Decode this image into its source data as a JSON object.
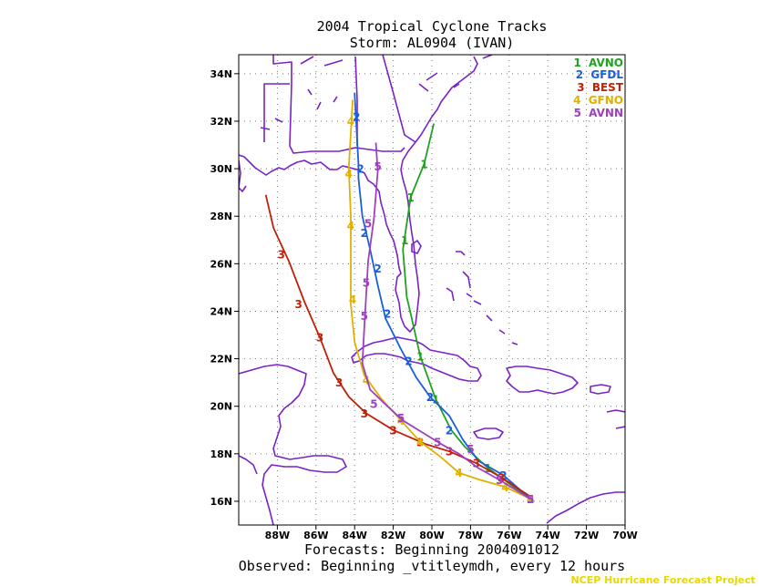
{
  "title_line1": "2004 Tropical Cyclone Tracks",
  "title_line2": "Storm: AL0904 (IVAN)",
  "footer_line1": "Forecasts: Beginning 2004091012",
  "footer_line2": "Observed: Beginning _vtitleymdh, every 12 hours",
  "credit": "NCEP Hurricane Forecast Project",
  "colors": {
    "AVNO": "#22a022",
    "GFDL": "#1a5fd8",
    "BEST": "#c0200a",
    "GFNO": "#e0b000",
    "AVNN": "#a040c0",
    "map": "#7a22c8"
  },
  "chart_data": {
    "type": "line",
    "x_axis": {
      "min": -90,
      "max": -70,
      "ticks": [
        -88,
        -86,
        -84,
        -82,
        -80,
        -78,
        -76,
        -74,
        -72,
        -70
      ],
      "tick_labels": [
        "88W",
        "86W",
        "84W",
        "82W",
        "80W",
        "78W",
        "76W",
        "74W",
        "72W",
        "70W"
      ]
    },
    "y_axis": {
      "min": 15,
      "max": 34.8,
      "ticks": [
        16,
        18,
        20,
        22,
        24,
        26,
        28,
        30,
        32,
        34
      ],
      "tick_labels": [
        "16N",
        "18N",
        "20N",
        "22N",
        "24N",
        "26N",
        "28N",
        "30N",
        "32N",
        "34N"
      ]
    },
    "grid": true,
    "legend_position": "top-right",
    "series": [
      {
        "name": "AVNO",
        "marker": "1",
        "color": "#22a022",
        "points": [
          [
            -74.9,
            16.1
          ],
          [
            -77.1,
            17.4
          ],
          [
            -78.3,
            18.3
          ],
          [
            -79.0,
            19.0
          ],
          [
            -79.8,
            20.3
          ],
          [
            -80.6,
            22.1
          ],
          [
            -81.1,
            23.9
          ],
          [
            -81.3,
            24.6
          ],
          [
            -81.5,
            26.6
          ],
          [
            -81.1,
            28.8
          ],
          [
            -80.4,
            30.2
          ],
          [
            -79.9,
            31.9
          ]
        ],
        "marker_points": [
          [
            -74.9,
            16.1
          ],
          [
            -77.1,
            17.4
          ],
          [
            -79.8,
            20.3
          ],
          [
            -80.6,
            22.1
          ],
          [
            -81.4,
            27.0
          ],
          [
            -81.1,
            28.8
          ],
          [
            -80.4,
            30.2
          ]
        ]
      },
      {
        "name": "GFDL",
        "marker": "2",
        "color": "#1a5fd8",
        "points": [
          [
            -74.9,
            16.1
          ],
          [
            -76.3,
            17.1
          ],
          [
            -77.6,
            17.7
          ],
          [
            -78.4,
            18.6
          ],
          [
            -79.1,
            19.6
          ],
          [
            -80.1,
            20.4
          ],
          [
            -80.8,
            21.2
          ],
          [
            -81.6,
            22.4
          ],
          [
            -82.4,
            23.7
          ],
          [
            -82.8,
            25.1
          ],
          [
            -83.2,
            26.6
          ],
          [
            -83.6,
            28.0
          ],
          [
            -83.8,
            29.6
          ],
          [
            -83.8,
            30.2
          ],
          [
            -83.9,
            31.7
          ],
          [
            -84.0,
            33.2
          ]
        ],
        "marker_points": [
          [
            -74.9,
            16.1
          ],
          [
            -76.3,
            17.1
          ],
          [
            -79.1,
            19.0
          ],
          [
            -80.1,
            20.4
          ],
          [
            -81.2,
            21.9
          ],
          [
            -82.3,
            23.9
          ],
          [
            -82.8,
            25.8
          ],
          [
            -83.5,
            27.3
          ],
          [
            -83.7,
            30.0
          ],
          [
            -83.9,
            32.2
          ]
        ]
      },
      {
        "name": "BEST",
        "marker": "3",
        "color": "#c0200a",
        "points": [
          [
            -74.9,
            16.2
          ],
          [
            -76.4,
            17.0
          ],
          [
            -77.7,
            17.6
          ],
          [
            -79.1,
            18.1
          ],
          [
            -80.3,
            18.4
          ],
          [
            -82.0,
            19.0
          ],
          [
            -83.4,
            19.7
          ],
          [
            -84.3,
            20.4
          ],
          [
            -85.1,
            21.4
          ],
          [
            -85.8,
            22.9
          ],
          [
            -86.6,
            24.4
          ],
          [
            -87.4,
            26.1
          ],
          [
            -88.2,
            27.5
          ],
          [
            -88.6,
            28.9
          ]
        ],
        "marker_points": [
          [
            -76.4,
            17.0
          ],
          [
            -77.7,
            17.6
          ],
          [
            -79.1,
            18.1
          ],
          [
            -80.6,
            18.5
          ],
          [
            -82.0,
            19.0
          ],
          [
            -83.5,
            19.7
          ],
          [
            -84.8,
            21.0
          ],
          [
            -85.8,
            22.9
          ],
          [
            -86.9,
            24.3
          ],
          [
            -87.8,
            26.4
          ]
        ]
      },
      {
        "name": "GFNO",
        "marker": "4",
        "color": "#e0b000",
        "points": [
          [
            -74.9,
            16.1
          ],
          [
            -76.2,
            16.6
          ],
          [
            -77.5,
            16.9
          ],
          [
            -78.6,
            17.2
          ],
          [
            -79.6,
            17.9
          ],
          [
            -80.6,
            18.5
          ],
          [
            -81.6,
            19.4
          ],
          [
            -82.6,
            20.3
          ],
          [
            -83.5,
            21.3
          ],
          [
            -84.0,
            22.7
          ],
          [
            -84.2,
            24.3
          ],
          [
            -84.2,
            26.2
          ],
          [
            -84.2,
            28.0
          ],
          [
            -84.3,
            30.0
          ],
          [
            -84.2,
            31.5
          ],
          [
            -84.1,
            32.9
          ]
        ],
        "marker_points": [
          [
            -74.9,
            16.1
          ],
          [
            -76.2,
            16.6
          ],
          [
            -78.6,
            17.2
          ],
          [
            -80.6,
            18.5
          ],
          [
            -81.6,
            19.4
          ],
          [
            -83.4,
            21.1
          ],
          [
            -84.1,
            24.5
          ],
          [
            -84.2,
            27.6
          ],
          [
            -84.3,
            29.8
          ],
          [
            -84.2,
            32.0
          ]
        ]
      },
      {
        "name": "AVNN",
        "marker": "5",
        "color": "#a040c0",
        "points": [
          [
            -74.9,
            16.1
          ],
          [
            -76.5,
            16.9
          ],
          [
            -77.6,
            17.4
          ],
          [
            -78.6,
            18.0
          ],
          [
            -79.5,
            18.4
          ],
          [
            -80.5,
            18.9
          ],
          [
            -81.5,
            19.4
          ],
          [
            -82.3,
            20.0
          ],
          [
            -83.2,
            20.7
          ],
          [
            -83.6,
            21.8
          ],
          [
            -83.5,
            23.3
          ],
          [
            -83.4,
            24.7
          ],
          [
            -83.3,
            26.1
          ],
          [
            -83.0,
            27.9
          ],
          [
            -82.8,
            29.9
          ],
          [
            -82.9,
            31.1
          ]
        ],
        "marker_points": [
          [
            -74.9,
            16.1
          ],
          [
            -76.5,
            16.9
          ],
          [
            -78.0,
            18.2
          ],
          [
            -79.7,
            18.5
          ],
          [
            -81.6,
            19.5
          ],
          [
            -83.0,
            20.1
          ],
          [
            -83.5,
            23.8
          ],
          [
            -83.4,
            25.2
          ],
          [
            -83.3,
            27.7
          ],
          [
            -82.8,
            30.1
          ]
        ]
      }
    ]
  }
}
